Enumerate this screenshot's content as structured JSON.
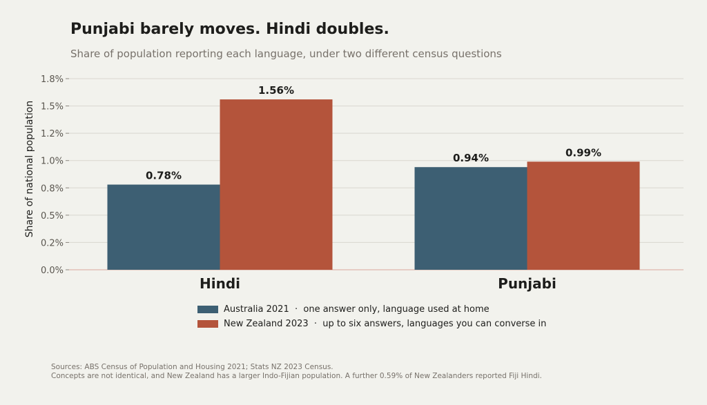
{
  "title": "Punjabi barely moves. Hindi doubles.",
  "subtitle": "Share of population reporting each language, under two different census questions",
  "colors": {
    "background": "#f2f2ed",
    "australia": "#3d5f73",
    "new_zealand": "#b4543b",
    "grid": "#d9d6cf",
    "axis": "#e0b6ab"
  },
  "chart_data": {
    "type": "bar",
    "title": "Punjabi barely moves. Hindi doubles.",
    "subtitle": "Share of population reporting each language, under two different census questions",
    "xlabel": "",
    "ylabel": "Share of national population",
    "categories": [
      "Hindi",
      "Punjabi"
    ],
    "series": [
      {
        "name": "Australia 2021",
        "legend_label": "Australia 2021  ·  one answer only, language used at home",
        "color": "#3d5f73",
        "values": [
          0.78,
          0.94
        ],
        "value_labels": [
          "0.78%",
          "0.94%"
        ]
      },
      {
        "name": "New Zealand 2023",
        "legend_label": "New Zealand 2023  ·  up to six answers, languages you can converse in",
        "color": "#b4543b",
        "values": [
          1.56,
          0.99
        ],
        "value_labels": [
          "1.56%",
          "0.99%"
        ]
      }
    ],
    "ylim": [
      0,
      1.75
    ],
    "yticks": [
      0,
      0.25,
      0.5,
      0.75,
      1.0,
      1.25,
      1.5,
      1.75
    ],
    "ytick_labels": [
      "0.0%",
      "0.2%",
      "0.5%",
      "0.8%",
      "1.0%",
      "1.2%",
      "1.5%",
      "1.8%"
    ],
    "grid": true,
    "legend_position": "bottom"
  },
  "footnote": {
    "line1": "Sources: ABS Census of Population and Housing 2021; Stats NZ 2023 Census.",
    "line2": "Concepts are not identical, and New Zealand has a larger Indo-Fijian population. A further 0.59% of New Zealanders reported Fiji Hindi."
  }
}
